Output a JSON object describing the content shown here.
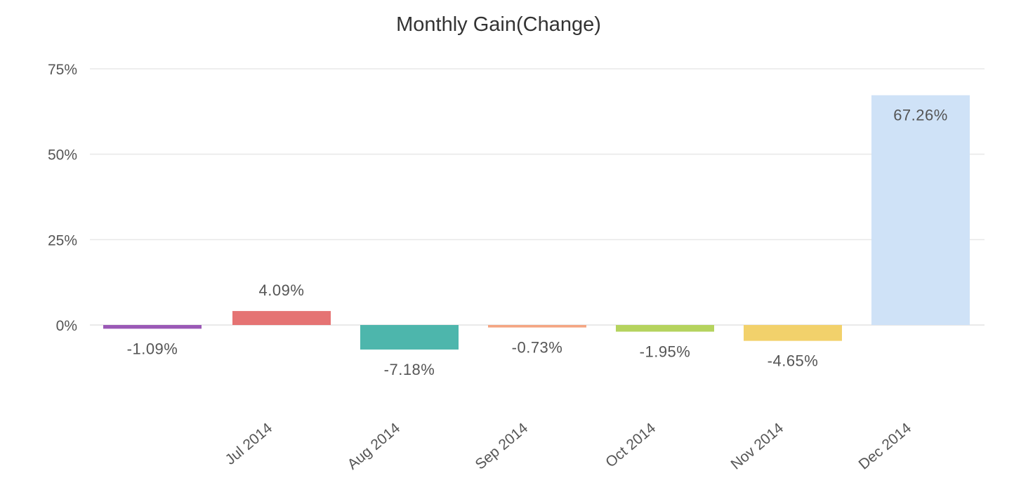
{
  "chart_data": {
    "type": "bar",
    "title": "Monthly Gain(Change)",
    "xlabel": "",
    "ylabel": "",
    "categories": [
      "",
      "Jul 2014",
      "Aug 2014",
      "Sep 2014",
      "Oct 2014",
      "Nov 2014",
      "Dec 2014"
    ],
    "values": [
      -1.09,
      4.09,
      -7.18,
      -0.73,
      -1.95,
      -4.65,
      67.26
    ],
    "data_labels": [
      "-1.09%",
      "4.09%",
      "-7.18%",
      "-0.73%",
      "-1.95%",
      "-4.65%",
      "67.26%"
    ],
    "colors": [
      "#9b59b6",
      "#e57373",
      "#4db6ac",
      "#f4a582",
      "#b5d35e",
      "#f2d16b",
      "#cfe2f7"
    ],
    "ylim": [
      -10,
      75
    ],
    "y_ticks": [
      0,
      25,
      50,
      75
    ],
    "y_tick_labels": [
      "0%",
      "25%",
      "50%",
      "75%"
    ],
    "grid": true,
    "legend": "none"
  }
}
